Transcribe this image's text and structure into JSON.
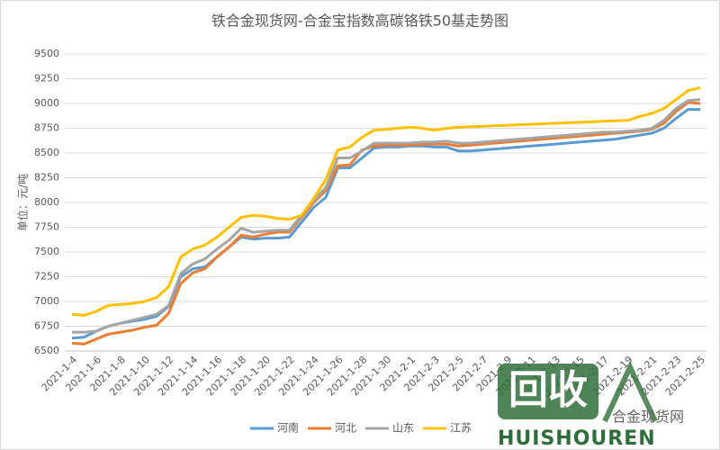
{
  "chart_data": {
    "type": "line",
    "title": "铁合金现货网-合金宝指数高碳铬铁50基走势图",
    "y_label": "单位：元/吨",
    "categories": [
      "2021-1-4",
      null,
      "2021-1-6",
      null,
      "2021-1-8",
      null,
      "2021-1-10",
      null,
      "2021-1-12",
      null,
      "2021-1-14",
      null,
      "2021-1-16",
      null,
      "2021-1-18",
      null,
      "2021-1-20",
      null,
      "2021-1-22",
      null,
      "2021-1-24",
      null,
      "2021-1-26",
      null,
      "2021-1-28",
      null,
      "2021-1-30",
      null,
      "2021-2-1",
      null,
      "2021-2-3",
      null,
      "2021-2-5",
      null,
      "2021-2-7",
      null,
      "2021-2-9",
      null,
      "2021-2-11",
      null,
      "2021-2-13",
      null,
      "2021-2-15",
      null,
      "2021-2-17",
      null,
      "2021-2-19",
      null,
      "2021-2-21",
      null,
      "2021-2-23",
      null,
      "2021-2-25"
    ],
    "series": [
      {
        "name": "河南",
        "color": "#5b9bd5",
        "values": [
          6630,
          6640,
          6700,
          6750,
          6780,
          6800,
          6820,
          6850,
          6950,
          7250,
          7330,
          7350,
          7450,
          7550,
          7650,
          7630,
          7640,
          7640,
          7650,
          7800,
          7950,
          8050,
          8350,
          8350,
          8450,
          8550,
          8560,
          8560,
          8570,
          8570,
          8560,
          8560,
          8520,
          8520,
          8530,
          8540,
          8550,
          8560,
          8570,
          8580,
          8590,
          8600,
          8610,
          8620,
          8630,
          8640,
          8660,
          8680,
          8700,
          8750,
          8850,
          8940,
          8940
        ]
      },
      {
        "name": "河北",
        "color": "#ed7d31",
        "values": [
          6580,
          6570,
          6620,
          6670,
          6690,
          6710,
          6740,
          6760,
          6880,
          7180,
          7290,
          7330,
          7450,
          7550,
          7670,
          7650,
          7680,
          7700,
          7700,
          7850,
          8000,
          8120,
          8370,
          8380,
          8530,
          8570,
          8580,
          8580,
          8580,
          8590,
          8590,
          8590,
          8570,
          8580,
          8590,
          8600,
          8610,
          8620,
          8630,
          8640,
          8650,
          8660,
          8670,
          8680,
          8690,
          8700,
          8710,
          8720,
          8740,
          8800,
          8920,
          9010,
          9000
        ]
      },
      {
        "name": "山东",
        "color": "#a5a5a5",
        "values": [
          6690,
          6690,
          6700,
          6750,
          6780,
          6810,
          6840,
          6870,
          6960,
          7280,
          7380,
          7430,
          7530,
          7620,
          7740,
          7700,
          7710,
          7720,
          7720,
          7870,
          8020,
          8150,
          8450,
          8450,
          8520,
          8600,
          8600,
          8600,
          8600,
          8610,
          8610,
          8620,
          8600,
          8600,
          8610,
          8620,
          8630,
          8640,
          8650,
          8660,
          8670,
          8680,
          8690,
          8700,
          8710,
          8710,
          8720,
          8730,
          8750,
          8830,
          8950,
          9030,
          9040
        ]
      },
      {
        "name": "江苏",
        "color": "#ffc000",
        "values": [
          6870,
          6860,
          6900,
          6960,
          6970,
          6980,
          7000,
          7040,
          7150,
          7450,
          7530,
          7570,
          7650,
          7750,
          7850,
          7870,
          7860,
          7840,
          7830,
          7870,
          8040,
          8230,
          8530,
          8560,
          8660,
          8730,
          8740,
          8750,
          8760,
          8750,
          8730,
          8750,
          8760,
          8765,
          8770,
          8775,
          8780,
          8785,
          8790,
          8795,
          8800,
          8805,
          8810,
          8815,
          8820,
          8825,
          8830,
          8870,
          8900,
          8950,
          9040,
          9130,
          9160
        ]
      }
    ],
    "ylim": [
      6500,
      9500
    ],
    "yticks": [
      6500,
      6750,
      7000,
      7250,
      7500,
      7750,
      8000,
      8250,
      8500,
      8750,
      9000,
      9250,
      9500
    ],
    "grid": true,
    "legend": "bottom",
    "watermark": [
      "回收",
      "HUISHOUREN",
      "合金现货网"
    ]
  }
}
